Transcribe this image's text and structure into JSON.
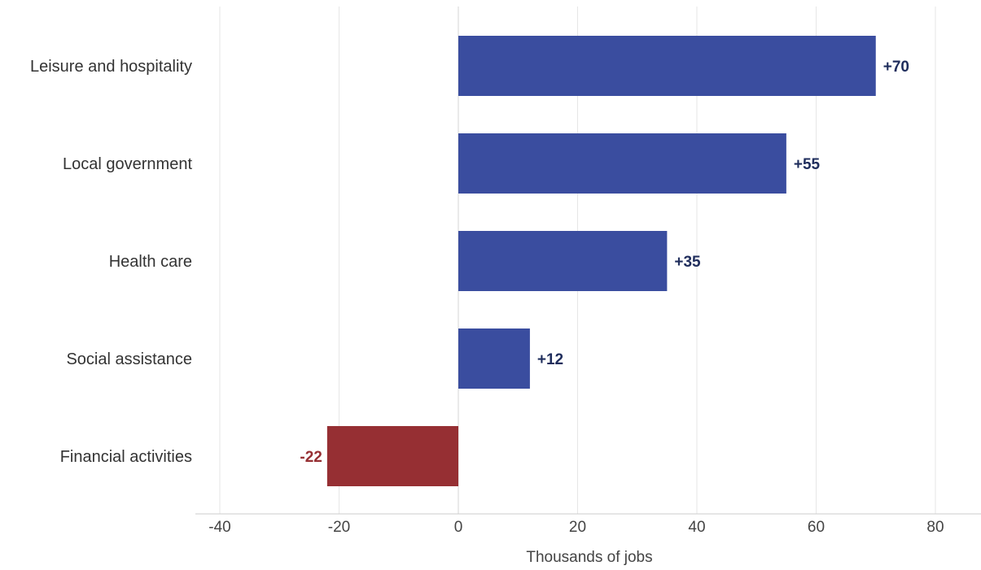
{
  "chart_data": {
    "type": "bar",
    "orientation": "horizontal",
    "categories": [
      "Leisure and hospitality",
      "Local government",
      "Health care",
      "Social assistance",
      "Financial activities"
    ],
    "values": [
      70,
      55,
      35,
      12,
      -22
    ],
    "data_labels": [
      "+70",
      "+55",
      "+35",
      "+12",
      "-22"
    ],
    "xlabel": "Thousands of jobs",
    "xlim": [
      -40,
      88
    ],
    "xticks": [
      -40,
      -20,
      0,
      20,
      40,
      60,
      80
    ],
    "xtick_labels": [
      "-40",
      "-20",
      "0",
      "20",
      "40",
      "60",
      "80"
    ],
    "grid": "vertical",
    "colors": {
      "positive_bar": "#3a4d9f",
      "negative_bar": "#962f33",
      "positive_label": "#1f2d5c",
      "negative_label": "#962f33",
      "grid": "#e6e6e6",
      "axis": "#cccccc"
    }
  }
}
